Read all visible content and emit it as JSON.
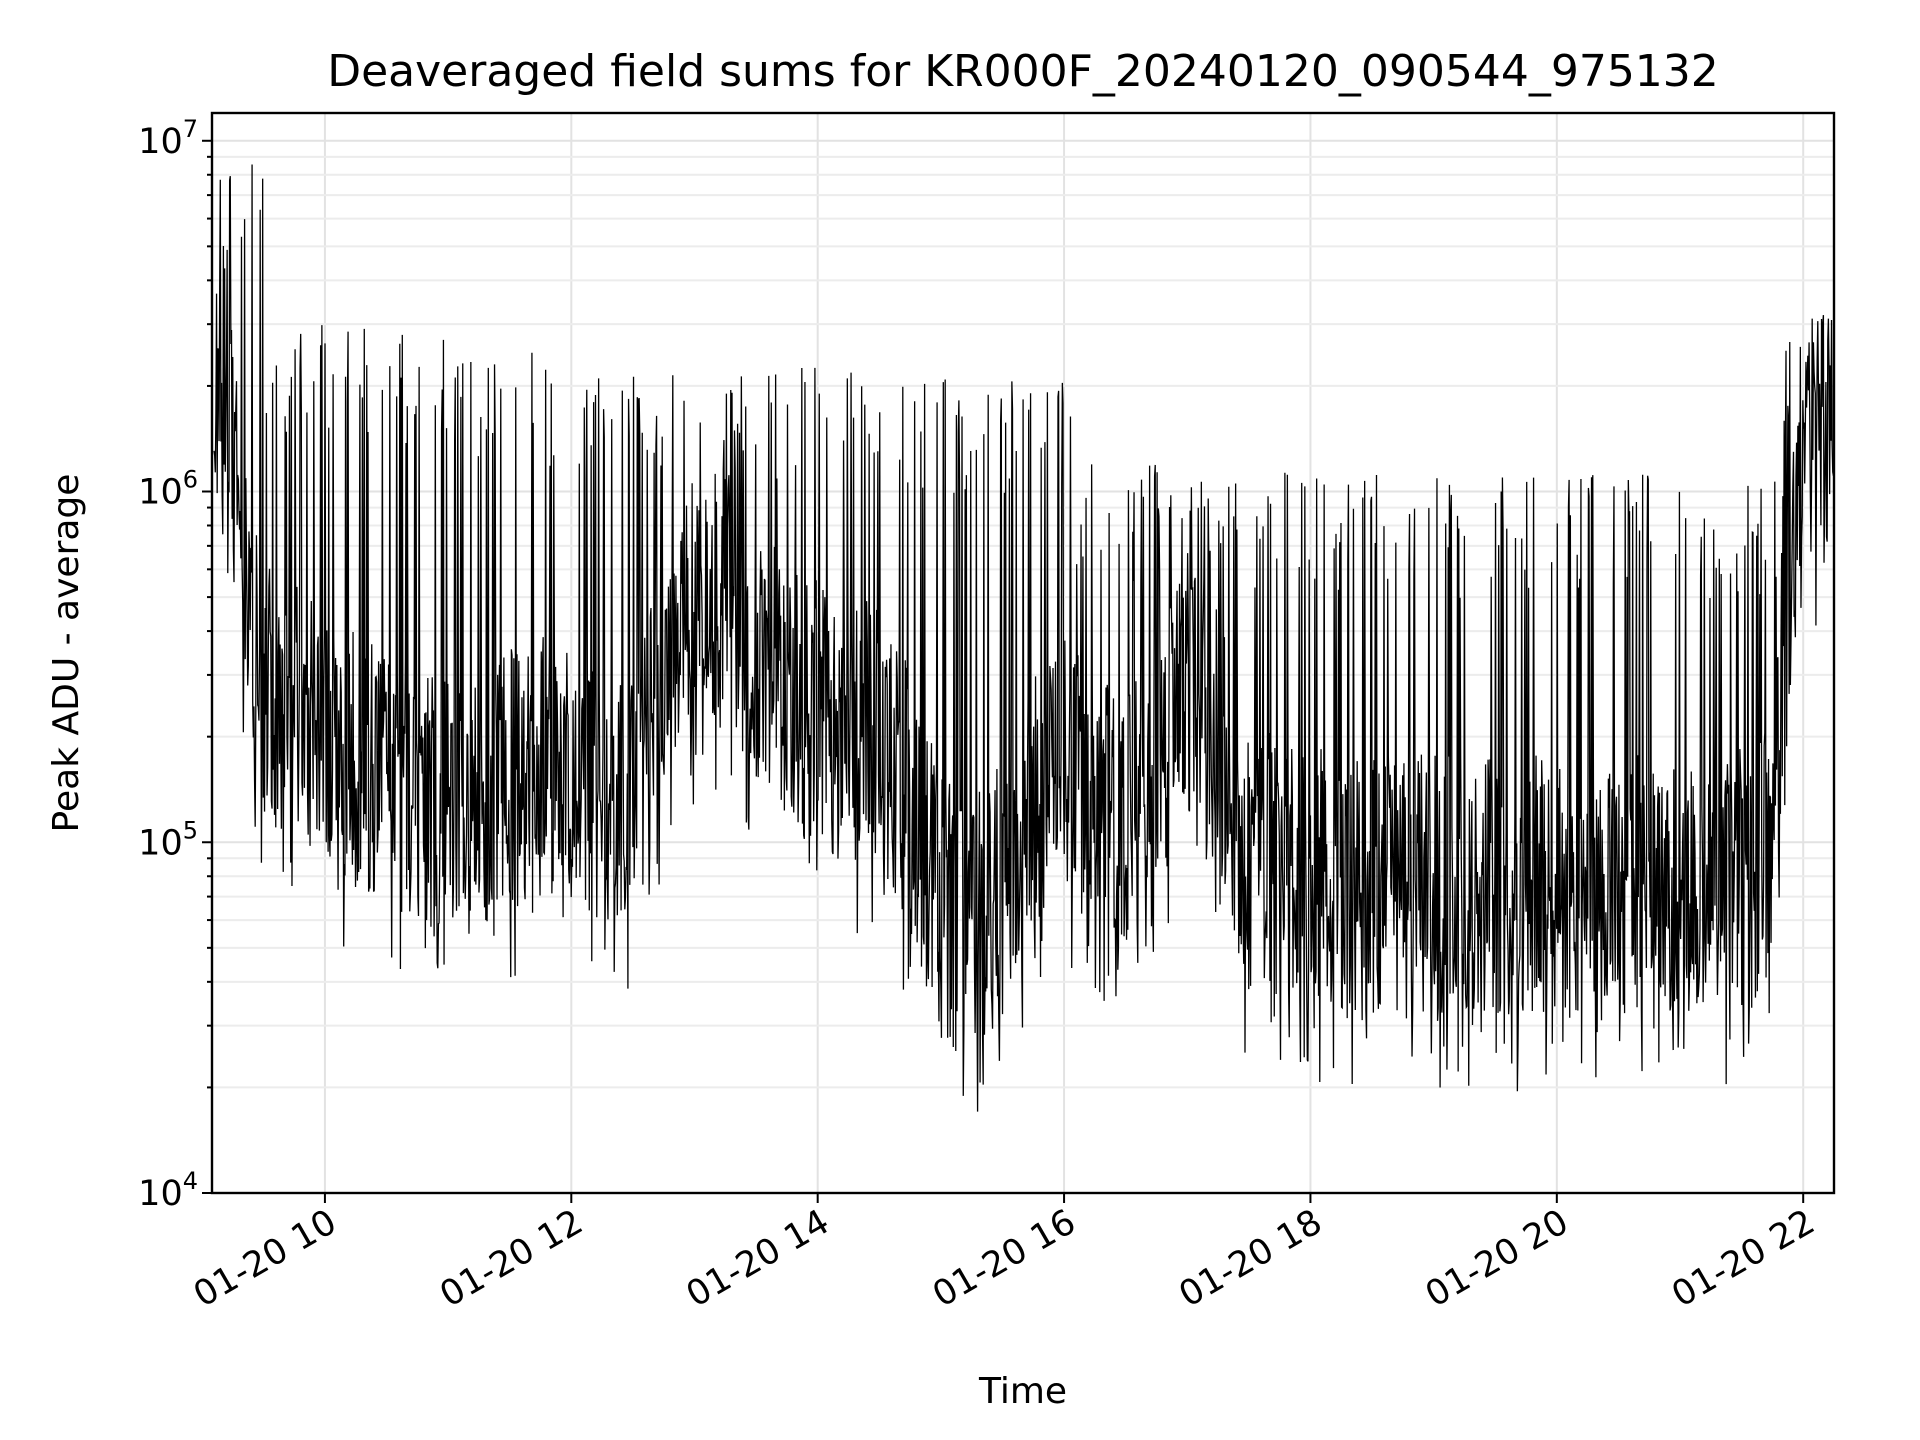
{
  "chart_data": {
    "type": "line",
    "title": "Deaveraged field sums for KR000F_20240120_090544_975132",
    "xlabel": "Time",
    "ylabel": "Peak ADU - average",
    "yscale": "log",
    "ylim": [
      10000,
      12000000
    ],
    "xlim": [
      "01-20 09:05",
      "01-20 22:15"
    ],
    "grid": true,
    "x_ticks": [
      "01-20 10",
      "01-20 12",
      "01-20 14",
      "01-20 16",
      "01-20 18",
      "01-20 20",
      "01-20 22"
    ],
    "y_ticks": [
      {
        "base": "10",
        "exp": "4",
        "value": 10000
      },
      {
        "base": "10",
        "exp": "5",
        "value": 100000
      },
      {
        "base": "10",
        "exp": "6",
        "value": 1000000
      },
      {
        "base": "10",
        "exp": "7",
        "value": 10000000
      }
    ],
    "series": [
      {
        "color": "#000000",
        "x": [
          "01-20 09:06",
          "01-20 09:15",
          "01-20 09:30",
          "01-20 09:45",
          "01-20 10:00",
          "01-20 10:15",
          "01-20 10:30",
          "01-20 10:45",
          "01-20 11:00",
          "01-20 11:15",
          "01-20 11:30",
          "01-20 11:45",
          "01-20 12:00",
          "01-20 12:15",
          "01-20 12:30",
          "01-20 12:45",
          "01-20 13:00",
          "01-20 13:15",
          "01-20 13:30",
          "01-20 13:45",
          "01-20 14:00",
          "01-20 14:15",
          "01-20 14:30",
          "01-20 14:45",
          "01-20 15:00",
          "01-20 15:15",
          "01-20 15:30",
          "01-20 15:45",
          "01-20 16:00",
          "01-20 16:15",
          "01-20 16:30",
          "01-20 16:45",
          "01-20 17:00",
          "01-20 17:15",
          "01-20 17:30",
          "01-20 17:45",
          "01-20 18:00",
          "01-20 18:15",
          "01-20 18:30",
          "01-20 18:45",
          "01-20 19:00",
          "01-20 19:15",
          "01-20 19:30",
          "01-20 19:45",
          "01-20 20:00",
          "01-20 20:15",
          "01-20 20:30",
          "01-20 20:45",
          "01-20 21:00",
          "01-20 21:15",
          "01-20 21:30",
          "01-20 21:45",
          "01-20 22:00",
          "01-20 22:15"
        ],
        "y": [
          1500000,
          1200000,
          250000,
          220000,
          180000,
          160000,
          140000,
          120000,
          110000,
          110000,
          140000,
          150000,
          140000,
          120000,
          110000,
          300000,
          450000,
          500000,
          300000,
          250000,
          220000,
          180000,
          200000,
          120000,
          60000,
          50000,
          70000,
          120000,
          150000,
          130000,
          110000,
          140000,
          250000,
          180000,
          80000,
          80000,
          75000,
          70000,
          70000,
          72000,
          70000,
          72000,
          68000,
          68000,
          70000,
          68000,
          70000,
          72000,
          70000,
          70000,
          72000,
          90000,
          1300000,
          1400000
        ],
        "peaks": [
          9000000,
          3000000,
          2900000,
          2500000,
          2300000,
          2400000,
          2300000,
          2200000,
          2100000,
          1200000,
          1100000,
          1150000,
          1100000,
          1100000,
          1150000,
          1100000,
          2700000
        ]
      }
    ]
  }
}
